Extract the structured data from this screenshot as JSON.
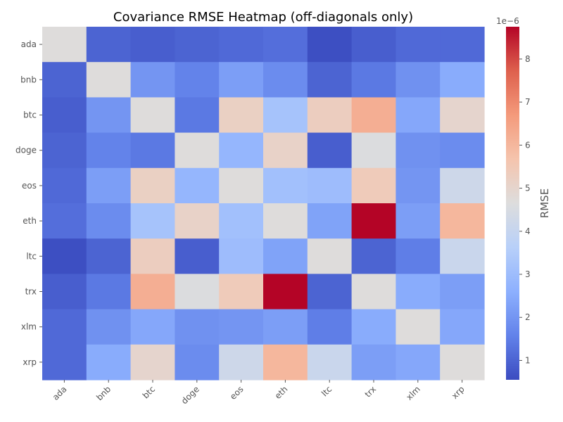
{
  "chart_data": {
    "type": "heatmap",
    "title": "Covariance RMSE Heatmap (off-diagonals only)",
    "x_categories": [
      "ada",
      "bnb",
      "btc",
      "doge",
      "eos",
      "eth",
      "ltc",
      "trx",
      "xlm",
      "xrp"
    ],
    "y_categories": [
      "ada",
      "bnb",
      "btc",
      "doge",
      "eos",
      "eth",
      "ltc",
      "trx",
      "xlm",
      "xrp"
    ],
    "values": [
      [
        4.7,
        1.0,
        0.9,
        1.0,
        1.1,
        1.2,
        0.6,
        0.9,
        1.1,
        1.1
      ],
      [
        1.0,
        4.7,
        2.0,
        1.6,
        2.2,
        1.8,
        1.0,
        1.4,
        1.9,
        2.5
      ],
      [
        0.9,
        2.0,
        4.7,
        1.4,
        5.2,
        3.2,
        5.3,
        6.2,
        2.4,
        5.0
      ],
      [
        1.0,
        1.6,
        1.4,
        4.7,
        2.8,
        5.1,
        0.9,
        4.6,
        1.9,
        1.8
      ],
      [
        1.1,
        2.2,
        5.2,
        2.8,
        4.7,
        3.1,
        3.0,
        5.4,
        2.0,
        4.2
      ],
      [
        1.2,
        1.8,
        3.2,
        5.1,
        3.1,
        4.7,
        2.3,
        8.8,
        2.2,
        6.0
      ],
      [
        0.6,
        1.0,
        5.3,
        0.9,
        3.0,
        2.3,
        4.7,
        1.0,
        1.5,
        4.1
      ],
      [
        0.9,
        1.4,
        6.2,
        4.6,
        5.4,
        8.8,
        1.0,
        4.7,
        2.5,
        2.2
      ],
      [
        1.1,
        1.9,
        2.4,
        1.9,
        2.0,
        2.2,
        1.5,
        2.5,
        4.7,
        2.4
      ],
      [
        1.1,
        2.5,
        5.0,
        1.8,
        4.2,
        6.0,
        4.1,
        2.2,
        2.4,
        4.7
      ]
    ],
    "value_scale_note": "1e−6",
    "colorbar": {
      "label": "RMSE",
      "vmin": 0.55,
      "vmax": 8.75,
      "ticks": [
        1,
        2,
        3,
        4,
        5,
        6,
        7,
        8
      ],
      "tick_labels": [
        "1",
        "2",
        "3",
        "4",
        "5",
        "6",
        "7",
        "8"
      ],
      "colormap": "coolwarm"
    },
    "grid": false
  }
}
